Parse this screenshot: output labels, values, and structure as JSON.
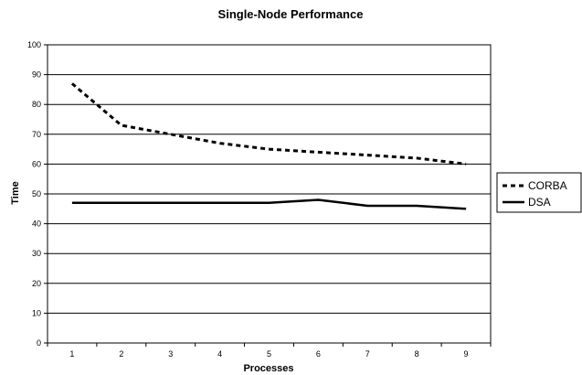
{
  "chart_data": {
    "type": "line",
    "title": "Single-Node Performance",
    "xlabel": "Processes",
    "ylabel": "Time",
    "categories": [
      "1",
      "2",
      "3",
      "4",
      "5",
      "6",
      "7",
      "8",
      "9"
    ],
    "ylim": [
      0,
      100
    ],
    "yticks": [
      "0",
      "10",
      "20",
      "30",
      "40",
      "50",
      "60",
      "70",
      "80",
      "90",
      "100"
    ],
    "grid": true,
    "legend_position": "right",
    "series": [
      {
        "name": "CORBA",
        "style": "dashed",
        "color": "#000000",
        "values": [
          87,
          73,
          70,
          67,
          65,
          64,
          63,
          62,
          60
        ]
      },
      {
        "name": "DSA",
        "style": "solid",
        "color": "#000000",
        "values": [
          47,
          47,
          47,
          47,
          47,
          48,
          46,
          46,
          45
        ]
      }
    ]
  }
}
